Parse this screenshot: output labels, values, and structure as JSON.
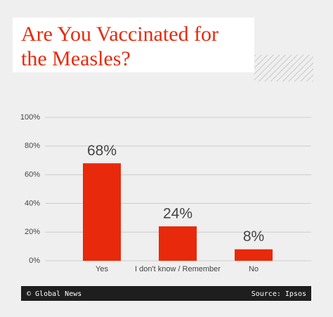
{
  "chart_data": {
    "type": "bar",
    "title": "Are You Vaccinated for the Measles?",
    "categories": [
      "Yes",
      "I don't know / Remember",
      "No"
    ],
    "values": [
      68,
      24,
      8
    ],
    "value_labels": [
      "68%",
      "24%",
      "8%"
    ],
    "color": "#e8290b",
    "ylim": [
      0,
      100
    ],
    "yticks": [
      {
        "value": 0,
        "label": "0%"
      },
      {
        "value": 20,
        "label": "20%"
      },
      {
        "value": 40,
        "label": "40%"
      },
      {
        "value": 60,
        "label": "60%"
      },
      {
        "value": 80,
        "label": "80%"
      },
      {
        "value": 100,
        "label": "100%"
      }
    ],
    "grid": true,
    "credit": "© Global News",
    "source": "Source: Ipsos"
  }
}
